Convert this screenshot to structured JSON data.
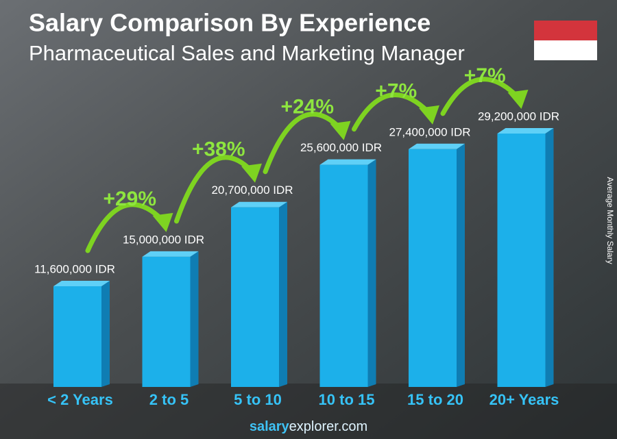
{
  "chart_data": {
    "type": "bar",
    "title": "Salary Comparison By Experience",
    "subtitle": "Pharmaceutical Sales and Marketing Manager",
    "y_label": "Average Monthly Salary",
    "categories": [
      "< 2 Years",
      "2 to 5",
      "5 to 10",
      "10 to 15",
      "15 to 20",
      "20+ Years"
    ],
    "values": [
      11600000,
      15000000,
      20700000,
      25600000,
      27400000,
      29200000
    ],
    "value_labels": [
      "11,600,000 IDR",
      "15,000,000 IDR",
      "20,700,000 IDR",
      "25,600,000 IDR",
      "27,400,000 IDR",
      "29,200,000 IDR"
    ],
    "increases": [
      "+29%",
      "+38%",
      "+24%",
      "+7%",
      "+7%"
    ],
    "color": "#1cb0ea",
    "source": {
      "brand": "salary",
      "rest": "explorer.com"
    }
  }
}
